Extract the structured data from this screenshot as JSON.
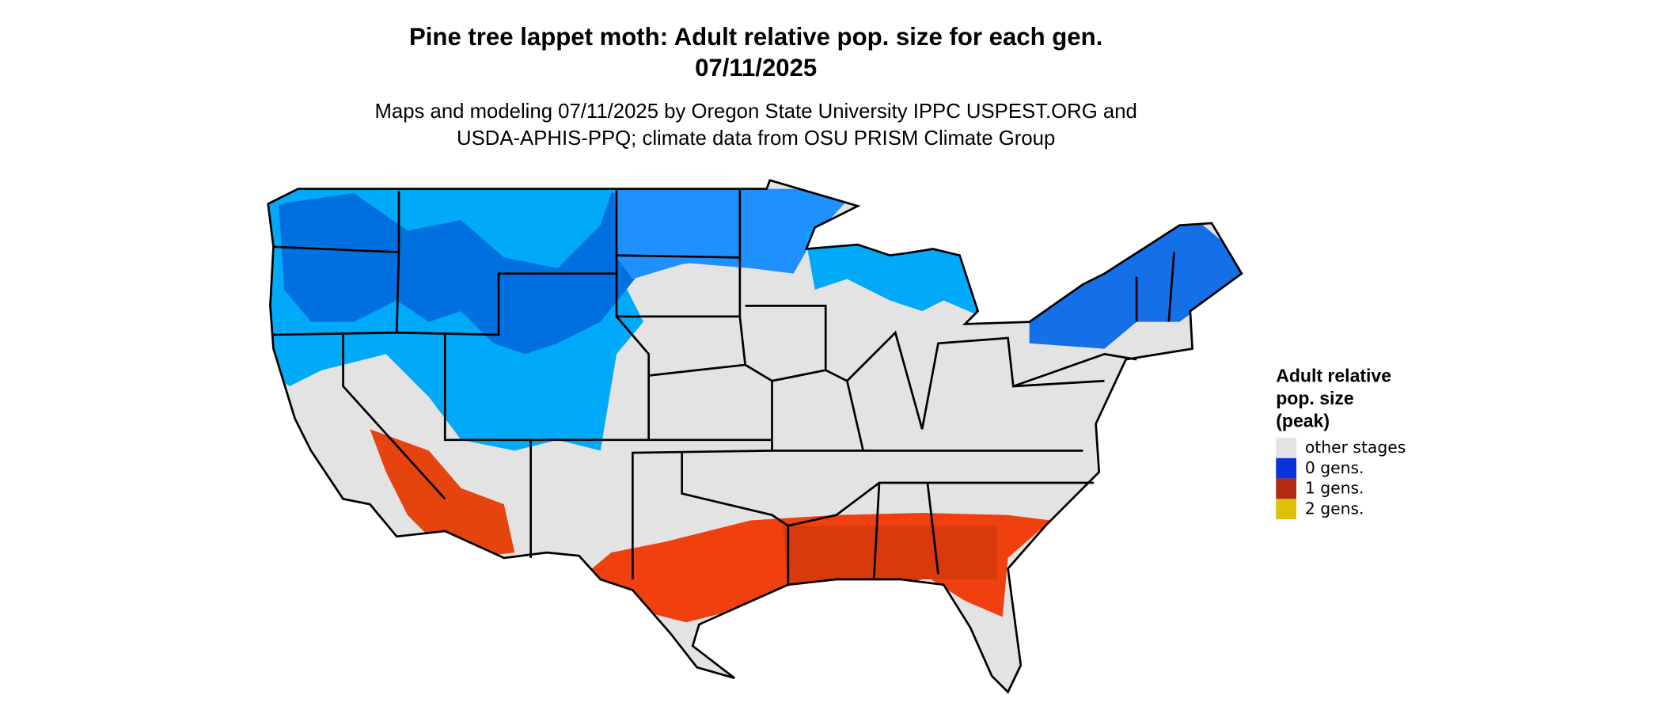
{
  "title": [
    "Pine tree lappet moth: Adult relative pop. size for each gen.",
    "07/11/2025"
  ],
  "subtitle": [
    "Maps and modeling 07/11/2025 by Oregon State University IPPC USPEST.ORG and",
    "USDA-APHIS-PPQ; climate data from OSU PRISM Climate Group"
  ],
  "legend": {
    "title": [
      "Adult relative",
      "pop. size",
      "(peak)"
    ],
    "items": [
      {
        "label": "other stages",
        "color": "#e3e3e3"
      },
      {
        "label": "0 gens.",
        "color": "#0a32d8"
      },
      {
        "label": "1 gens.",
        "color": "#b02a14"
      },
      {
        "label": "2 gens.",
        "color": "#dcc10a"
      }
    ]
  }
}
